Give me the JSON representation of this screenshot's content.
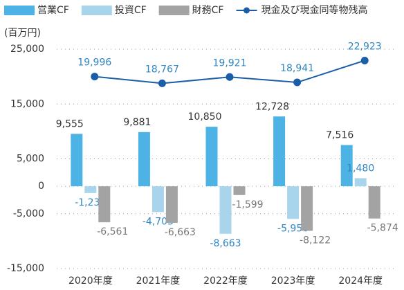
{
  "chart_data": {
    "type": "bar",
    "unit_label": "(百万円)",
    "categories": [
      "2020年度",
      "2021年度",
      "2022年度",
      "2023年度",
      "2024年度"
    ],
    "ylim": [
      -15000,
      25000
    ],
    "yticks": [
      {
        "value": 25000,
        "label": "25,000"
      },
      {
        "value": 15000,
        "label": "15,000"
      },
      {
        "value": 5000,
        "label": "5,000"
      },
      0,
      {
        "value": -5000,
        "label": "-5,000"
      },
      {
        "value": -15000,
        "label": "-15,000"
      }
    ],
    "grid": true,
    "legend": "top",
    "series": [
      {
        "name": "営業CF",
        "type": "bar",
        "color": "#4db3e4",
        "label_color": "#333333",
        "values": [
          9555,
          9881,
          10850,
          12728,
          7516
        ],
        "value_labels": [
          "9,555",
          "9,881",
          "10,850",
          "12,728",
          "7,516"
        ]
      },
      {
        "name": "投資CF",
        "type": "bar",
        "color": "#a9d5ec",
        "label_color": "#2f86c4",
        "values": [
          -1230,
          -4703,
          -8663,
          -5950,
          1480
        ],
        "value_labels": [
          "-1,230",
          "-4,703",
          "-8,663",
          "-5,950",
          "1,480"
        ]
      },
      {
        "name": "財務CF",
        "type": "bar",
        "color": "#a3a3a3",
        "label_color": "#777777",
        "values": [
          -6561,
          -6663,
          -1599,
          -8122,
          -5874
        ],
        "value_labels": [
          "-6,561",
          "-6,663",
          "-1,599",
          "-8,122",
          "-5,874"
        ]
      },
      {
        "name": "現金及び現金同等物残高",
        "type": "line",
        "color": "#1b5ea8",
        "label_color": "#2f86c4",
        "values": [
          19996,
          18767,
          19921,
          18941,
          22923
        ],
        "value_labels": [
          "19,996",
          "18,767",
          "19,921",
          "18,941",
          "22,923"
        ]
      }
    ]
  }
}
